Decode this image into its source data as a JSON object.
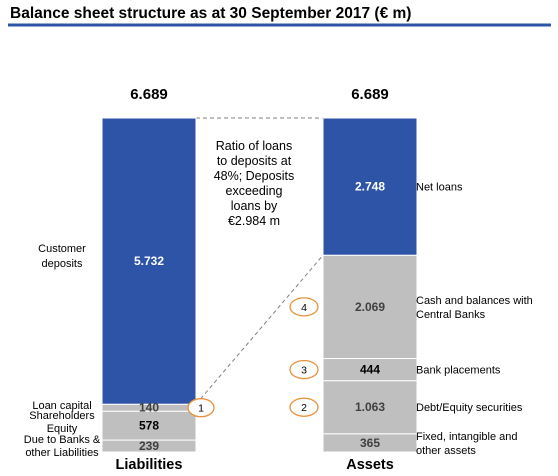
{
  "chart_data": {
    "type": "bar",
    "title": "Balance sheet structure as at 30 September 2017 (€ m)",
    "categories": [
      "Liabilities",
      "Assets"
    ],
    "totals": [
      "6.689",
      "6.689"
    ],
    "columns": [
      {
        "name": "Liabilities",
        "total": 6689,
        "total_label": "6.689",
        "segments": [
          {
            "name": "Due to Banks & other Liabilities",
            "value": 239,
            "label": "239",
            "color": "#bfbfbf",
            "label_color": "#404040",
            "bold": false
          },
          {
            "name": "Shareholders Equity",
            "value": 578,
            "label": "578",
            "color": "#bfbfbf",
            "label_color": "#000000",
            "bold": true
          },
          {
            "name": "Loan capital",
            "value": 140,
            "label": "140",
            "color": "#bfbfbf",
            "label_color": "#404040",
            "bold": false
          },
          {
            "name": "Customer deposits",
            "value": 5732,
            "label": "5.732",
            "color": "#2e54a8",
            "label_color": "#ffffff",
            "bold": true
          }
        ]
      },
      {
        "name": "Assets",
        "total": 6689,
        "total_label": "6.689",
        "segments": [
          {
            "name": "Fixed, intangible and other assets",
            "value": 365,
            "label": "365",
            "color": "#bfbfbf",
            "label_color": "#404040",
            "bold": false
          },
          {
            "name": "Debt/Equity securities",
            "value": 1063,
            "label": "1.063",
            "color": "#bfbfbf",
            "label_color": "#404040",
            "bold": false
          },
          {
            "name": "Bank placements",
            "value": 444,
            "label": "444",
            "color": "#bfbfbf",
            "label_color": "#000000",
            "bold": true
          },
          {
            "name": "Cash and balances with Central Banks",
            "value": 2069,
            "label": "2.069",
            "color": "#bfbfbf",
            "label_color": "#404040",
            "bold": false
          },
          {
            "name": "Net loans",
            "value": 2748,
            "label": "2.748",
            "color": "#2e54a8",
            "label_color": "#ffffff",
            "bold": true
          }
        ]
      }
    ],
    "liability_labels": [
      {
        "lines": [
          "Customer",
          "deposits"
        ],
        "segment": 3
      },
      {
        "lines": [
          "Loan capital"
        ],
        "segment": 2
      },
      {
        "lines": [
          "Shareholders",
          "Equity"
        ],
        "segment": 1
      },
      {
        "lines": [
          "Due to Banks &",
          "other Liabilities"
        ],
        "segment": 0
      }
    ],
    "asset_labels": [
      {
        "lines": [
          "Net loans"
        ],
        "segment": 4
      },
      {
        "lines": [
          "Cash and balances with",
          "Central Banks"
        ],
        "segment": 3,
        "marker": "4"
      },
      {
        "lines": [
          "Bank placements"
        ],
        "segment": 2,
        "marker": "3"
      },
      {
        "lines": [
          "Debt/Equity securities"
        ],
        "segment": 1,
        "marker": "2"
      },
      {
        "lines": [
          "Fixed, intangible and",
          "other assets"
        ],
        "segment": 0
      }
    ],
    "annotation": {
      "lines": [
        "Ratio of loans",
        "to deposits at",
        "48%; Deposits",
        "exceeding",
        "loans by",
        "€2.984 m"
      ]
    },
    "loan_capital_marker": "1",
    "colors": {
      "accent_rule": "#2e54a8",
      "marker_stroke": "#e8913a",
      "connector": "#808080"
    }
  }
}
